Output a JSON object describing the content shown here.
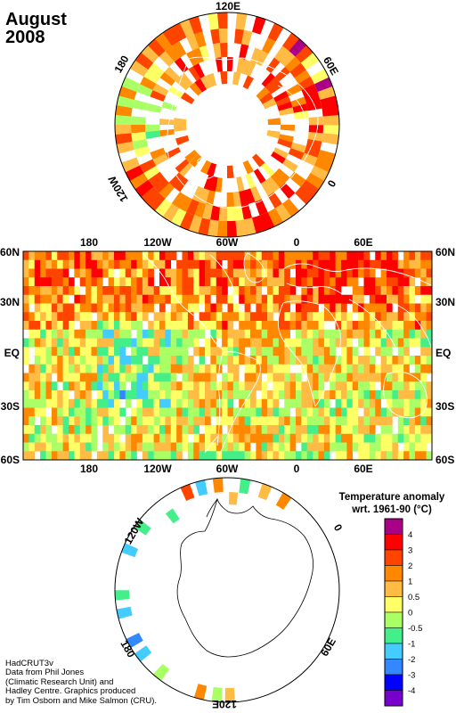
{
  "title": {
    "month": "August",
    "year": "2008"
  },
  "north_polar_labels": {
    "top": "120E",
    "right_top": "60E",
    "right": "0",
    "left_top": "180",
    "left_bottom": "120W"
  },
  "world_map": {
    "lon_labels": [
      "180",
      "120W",
      "60W",
      "0",
      "60E"
    ],
    "lat_labels": [
      "60N",
      "30N",
      "EQ",
      "30S",
      "60S"
    ]
  },
  "south_polar_labels": {
    "left_top": "120W",
    "right_top": "0",
    "right_bottom": "60E",
    "bottom": "120E",
    "left_bottom": "180"
  },
  "colorbar": {
    "title_line1": "Temperature anomaly",
    "title_line2": "wrt. 1961-90  (°C)",
    "bins": [
      {
        "color": "#aa0088",
        "label": "4"
      },
      {
        "color": "#ff0000",
        "label": "3"
      },
      {
        "color": "#ff4400",
        "label": "2"
      },
      {
        "color": "#ff8800",
        "label": "1"
      },
      {
        "color": "#ffbb44",
        "label": "0.5"
      },
      {
        "color": "#ffff66",
        "label": "0"
      },
      {
        "color": "#aaff66",
        "label": "-0.5"
      },
      {
        "color": "#44ee88",
        "label": "-1"
      },
      {
        "color": "#44ccff",
        "label": "-2"
      },
      {
        "color": "#3388ff",
        "label": "-3"
      },
      {
        "color": "#0000ff",
        "label": "-4"
      },
      {
        "color": "#7700cc",
        "label": ""
      }
    ]
  },
  "credits": {
    "line1": "HadCRUT3v",
    "line2": "Data from Phil Jones",
    "line3": "(Climatic Research Unit) and",
    "line4": "Hadley Centre.  Graphics produced",
    "line5": "by Tim Osborn and Mike Salmon (CRU)."
  }
}
